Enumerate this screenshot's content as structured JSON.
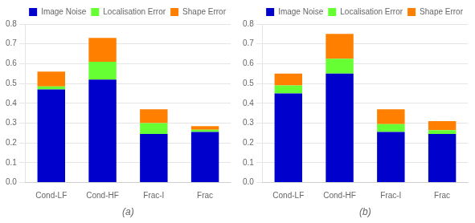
{
  "chart_data": [
    {
      "type": "bar",
      "stacked": true,
      "xlabel": "(a)",
      "categories": [
        "Cond-LF",
        "Cond-HF",
        "Frac-I",
        "Frac"
      ],
      "series": [
        {
          "name": "Image Noise",
          "color": "#0000CC",
          "values": [
            0.47,
            0.52,
            0.245,
            0.255
          ]
        },
        {
          "name": "Localisation Error",
          "color": "#66FF33",
          "values": [
            0.015,
            0.09,
            0.055,
            0.012
          ]
        },
        {
          "name": "Shape Error",
          "color": "#FF8000",
          "values": [
            0.075,
            0.12,
            0.07,
            0.018
          ]
        }
      ],
      "ylim": [
        0,
        0.8
      ],
      "yticks": [
        {
          "value": 0,
          "label": "0.0"
        },
        0.1,
        0.2,
        0.3,
        0.4,
        0.5,
        0.6,
        0.7,
        0.8
      ],
      "grid": true,
      "legend": "upper right"
    },
    {
      "type": "bar",
      "stacked": true,
      "xlabel": "(b)",
      "categories": [
        "Cond-LF",
        "Cond-HF",
        "Frac-I",
        "Frac"
      ],
      "series": [
        {
          "name": "Image Noise",
          "color": "#0000CC",
          "values": [
            0.45,
            0.55,
            0.255,
            0.245
          ]
        },
        {
          "name": "Localisation Error",
          "color": "#66FF33",
          "values": [
            0.04,
            0.075,
            0.04,
            0.02
          ]
        },
        {
          "name": "Shape Error",
          "color": "#FF8000",
          "values": [
            0.06,
            0.125,
            0.075,
            0.045
          ]
        }
      ],
      "ylim": [
        0,
        0.8
      ],
      "yticks": [
        {
          "value": 0,
          "label": "0.0"
        },
        0.1,
        0.2,
        0.3,
        0.4,
        0.5,
        0.6,
        0.7,
        0.8
      ],
      "grid": true,
      "legend": "upper right"
    }
  ]
}
